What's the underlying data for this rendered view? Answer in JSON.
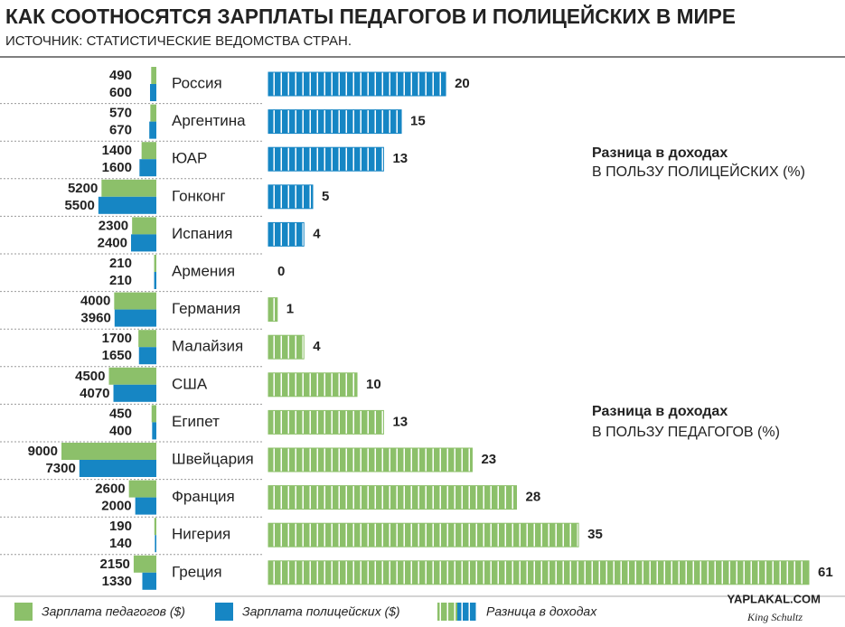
{
  "chart_data": {
    "type": "paired-bar",
    "title": "КАК СООТНОСЯТСЯ ЗАРПЛАТЫ ПЕДАГОГОВ И ПОЛИЦЕЙСКИХ В МИРЕ",
    "subtitle": "ИСТОЧНИК: СТАТИСТИЧЕСКИЕ ВЕДОМСТВА СТРАН.",
    "categories": [
      "Россия",
      "Аргентина",
      "ЮАР",
      "Гонконг",
      "Испания",
      "Армения",
      "Германия",
      "Малайзия",
      "США",
      "Египет",
      "Швейцария",
      "Франция",
      "Нигерия",
      "Греция"
    ],
    "xlim": [
      0,
      9000
    ],
    "series": [
      {
        "name": "Зарплата педагогов ($)",
        "color": "#8cc06a",
        "values": [
          490,
          570,
          1400,
          5200,
          2300,
          210,
          4000,
          1700,
          4500,
          450,
          9000,
          2600,
          190,
          2150
        ]
      },
      {
        "name": "Зарплата полицейских ($)",
        "color": "#1686c4",
        "values": [
          600,
          670,
          1600,
          5500,
          2400,
          210,
          3960,
          1650,
          4070,
          400,
          7300,
          2000,
          140,
          1330
        ]
      }
    ],
    "difference": {
      "name": "Разница в доходах",
      "xlim": [
        0,
        61
      ],
      "series": [
        {
          "label": [
            "Разница в доходах",
            "В ПОЛЬЗУ ПОЛИЦЕЙСКИХ (%)"
          ],
          "color": "#1686c4",
          "values": [
            20,
            15,
            13,
            5,
            4,
            0,
            null,
            null,
            null,
            null,
            null,
            null,
            null,
            null
          ]
        },
        {
          "label": [
            "Разница в доходах",
            "В ПОЛЬЗУ ПЕДАГОГОВ (%)"
          ],
          "color": "#8cc06a",
          "values": [
            null,
            null,
            null,
            null,
            null,
            null,
            1,
            4,
            10,
            13,
            23,
            28,
            35,
            61
          ]
        }
      ]
    }
  },
  "watermarks": [
    "YAPLAKAL.COM",
    "King Schultz"
  ]
}
